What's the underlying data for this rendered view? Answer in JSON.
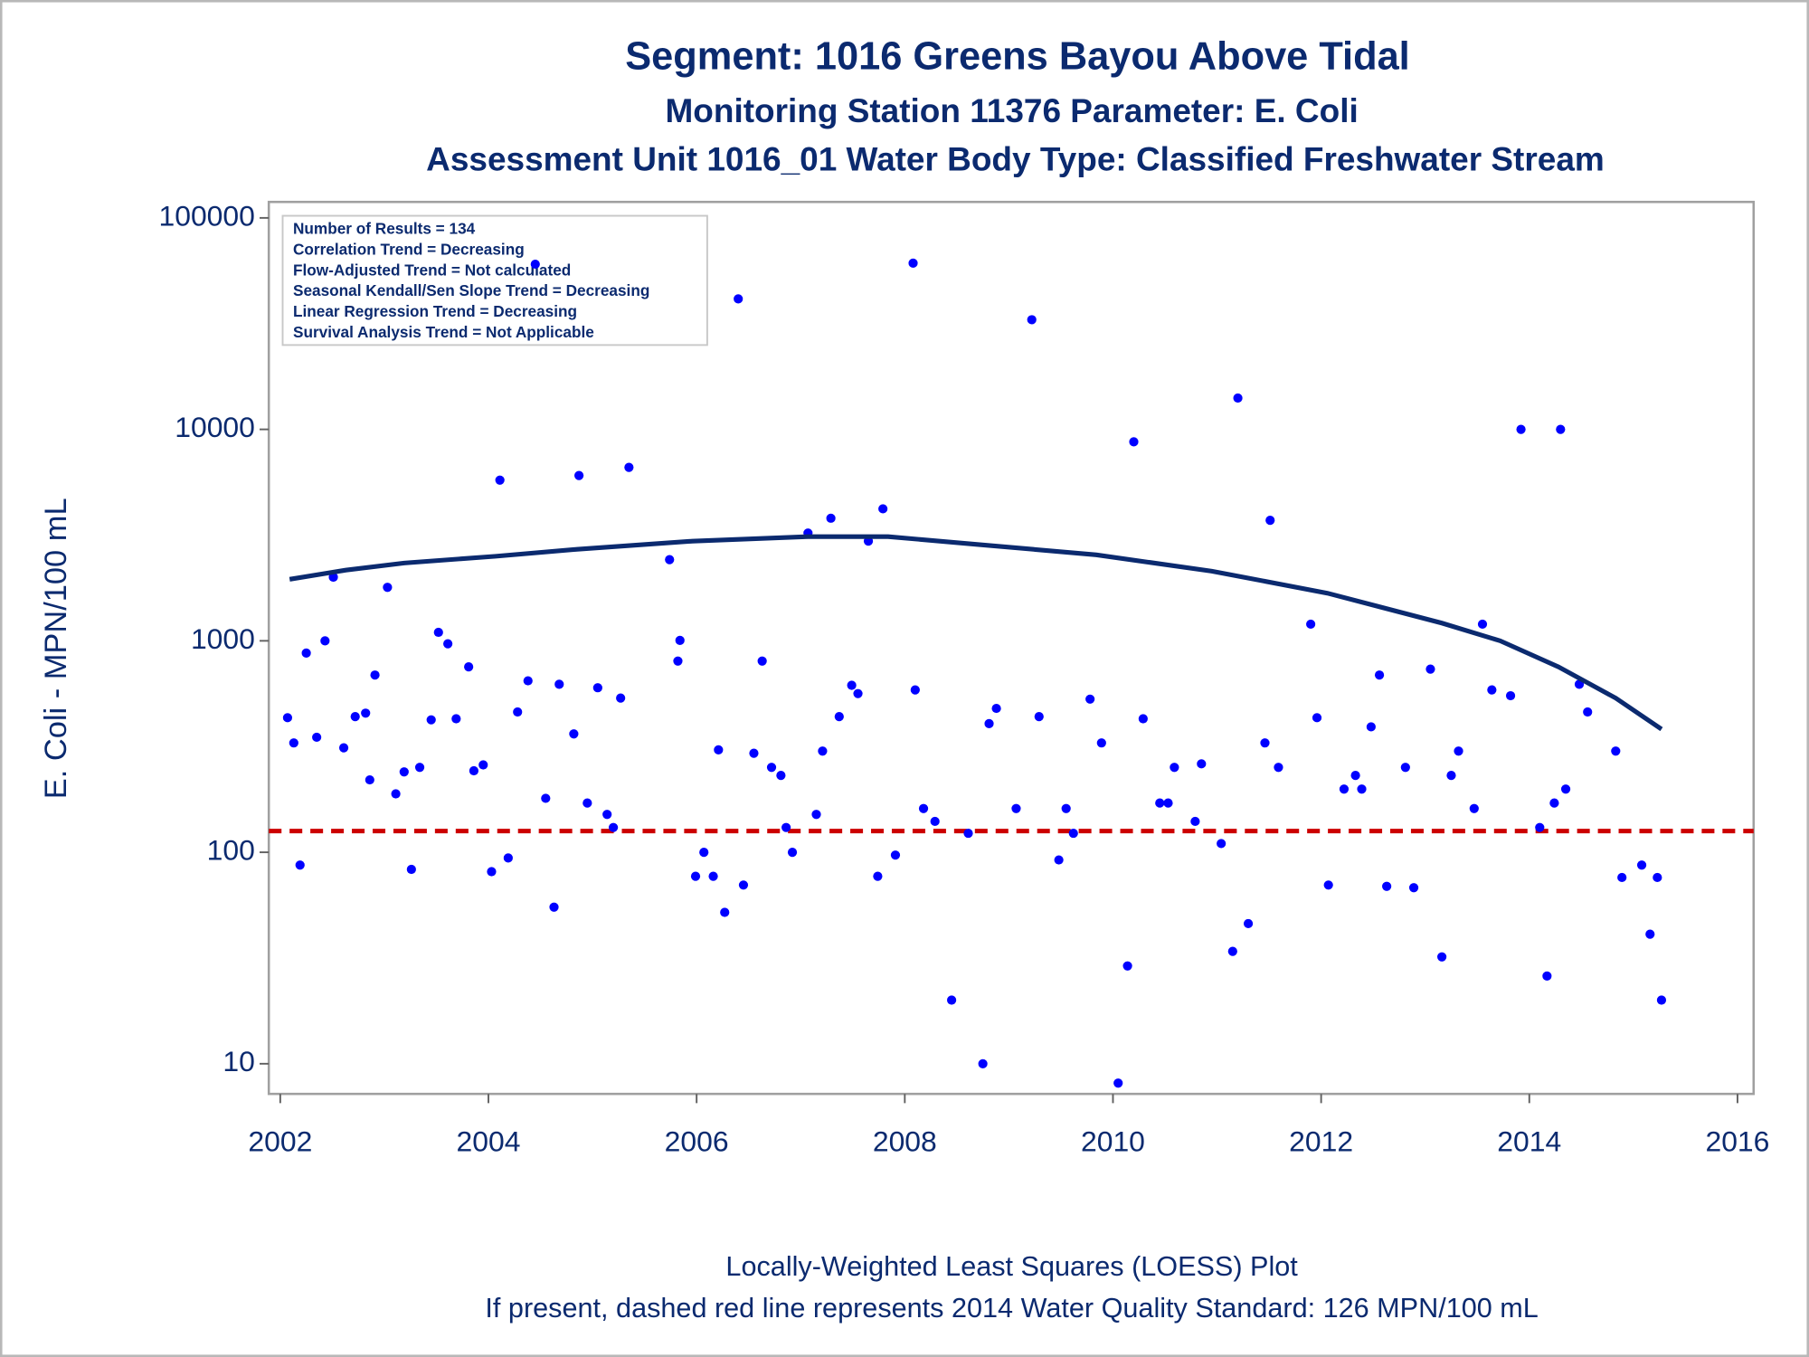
{
  "chart_data": {
    "type": "scatter",
    "title": "Segment: 1016  Greens Bayou Above Tidal",
    "subtitle": "Monitoring Station 11376 Parameter: E. Coli",
    "subtitle2": "Assessment Unit 1016_01   Water Body Type: Classified Freshwater Stream",
    "y_label": "E. Coli - MPN/100 mL",
    "footnotes": [
      "Locally-Weighted Least Squares (LOESS) Plot",
      "If present, dashed red line represents 2014 Water Quality Standard: 126 MPN/100 mL"
    ],
    "stats_box": [
      "Number of Results = 134",
      "Correlation Trend = Decreasing",
      "Flow-Adjusted Trend = Not calculated",
      "Seasonal Kendall/Sen Slope Trend = Decreasing",
      "Linear Regression Trend = Decreasing",
      "Survival Analysis Trend = Not Applicable"
    ],
    "log_y": true,
    "xlim": [
      2001.89,
      2016.155
    ],
    "xticks": [
      2002,
      2004,
      2006,
      2008,
      2010,
      2012,
      2014,
      2016
    ],
    "ylim": [
      7.2,
      119000
    ],
    "yticks": [
      10,
      100,
      1000,
      10000,
      100000
    ],
    "reference_line": {
      "value": 126,
      "color": "#cc0000"
    },
    "series": [
      {
        "style": "points",
        "color": "#0000ff",
        "x": [
          2002.07,
          2002.13,
          2002.19,
          2002.25,
          2002.35,
          2002.43,
          2002.51,
          2002.61,
          2002.72,
          2002.82,
          2002.86,
          2002.91,
          2003.03,
          2003.11,
          2003.19,
          2003.26,
          2003.34,
          2003.45,
          2003.52,
          2003.61,
          2003.69,
          2003.81,
          2003.86,
          2003.95,
          2004.03,
          2004.11,
          2004.19,
          2004.28,
          2004.38,
          2004.45,
          2004.55,
          2004.63,
          2004.68,
          2004.82,
          2004.87,
          2004.95,
          2005.05,
          2005.14,
          2005.2,
          2005.27,
          2005.35,
          2005.74,
          2005.82,
          2005.84,
          2005.99,
          2006.07,
          2006.16,
          2006.21,
          2006.27,
          2006.4,
          2006.45,
          2006.55,
          2006.63,
          2006.72,
          2006.81,
          2006.86,
          2006.92,
          2007.07,
          2007.15,
          2007.21,
          2007.29,
          2007.37,
          2007.49,
          2007.55,
          2007.65,
          2007.74,
          2007.79,
          2007.91,
          2008.08,
          2008.1,
          2008.18,
          2008.29,
          2008.45,
          2008.61,
          2008.75,
          2008.81,
          2008.88,
          2009.07,
          2009.22,
          2009.29,
          2009.48,
          2009.55,
          2009.62,
          2009.78,
          2009.89,
          2010.05,
          2010.14,
          2010.2,
          2010.29,
          2010.45,
          2010.53,
          2010.59,
          2010.79,
          2010.85,
          2011.04,
          2011.15,
          2011.2,
          2011.3,
          2011.46,
          2011.51,
          2011.59,
          2011.9,
          2011.96,
          2012.07,
          2012.22,
          2012.33,
          2012.39,
          2012.48,
          2012.56,
          2012.63,
          2012.81,
          2012.89,
          2013.05,
          2013.16,
          2013.25,
          2013.32,
          2013.47,
          2013.55,
          2013.64,
          2013.82,
          2013.92,
          2014.1,
          2014.17,
          2014.24,
          2014.3,
          2014.35,
          2014.48,
          2014.56,
          2014.83,
          2014.89,
          2015.08,
          2015.16,
          2015.23,
          2015.27
        ],
        "values": [
          433,
          329,
          87,
          875,
          350,
          1000,
          2000,
          312,
          438,
          455,
          220,
          689,
          1790,
          189,
          240,
          83,
          252,
          423,
          1097,
          968,
          428,
          753,
          243,
          259,
          81,
          5750,
          94,
          461,
          647,
          60400,
          180,
          55,
          623,
          363,
          6050,
          171,
          600,
          151,
          131,
          536,
          6610,
          2420,
          802,
          1005,
          77,
          100,
          77,
          305,
          52,
          41400,
          70,
          294,
          802,
          252,
          231,
          131,
          100,
          3235,
          151,
          301,
          3800,
          438,
          616,
          563,
          2960,
          77,
          4210,
          97,
          61100,
          586,
          161,
          140,
          20,
          123,
          10,
          406,
          479,
          161,
          33000,
          438,
          92,
          161,
          123,
          530,
          329,
          8.1,
          29,
          8730,
          428,
          171,
          171,
          252,
          140,
          262,
          110,
          34,
          14060,
          46,
          329,
          3715,
          252,
          1199,
          433,
          70,
          199,
          231,
          199,
          392,
          689,
          69,
          252,
          68,
          735,
          32,
          231,
          301,
          161,
          1199,
          586,
          550,
          10000,
          131,
          26,
          171,
          10000,
          199,
          623,
          461,
          301,
          76,
          87,
          41,
          76,
          20
        ]
      },
      {
        "style": "line",
        "color": "#0b2a6f",
        "x": [
          2002.09,
          2002.63,
          2003.19,
          2004.07,
          2004.85,
          2005.96,
          2007.07,
          2007.84,
          2008.72,
          2009.84,
          2010.95,
          2012.06,
          2013.16,
          2013.72,
          2014.28,
          2014.83,
          2015.27
        ],
        "values": [
          1955,
          2160,
          2333,
          2512,
          2710,
          2960,
          3110,
          3110,
          2850,
          2550,
          2135,
          1680,
          1213,
          1000,
          753,
          536,
          382
        ]
      }
    ]
  }
}
